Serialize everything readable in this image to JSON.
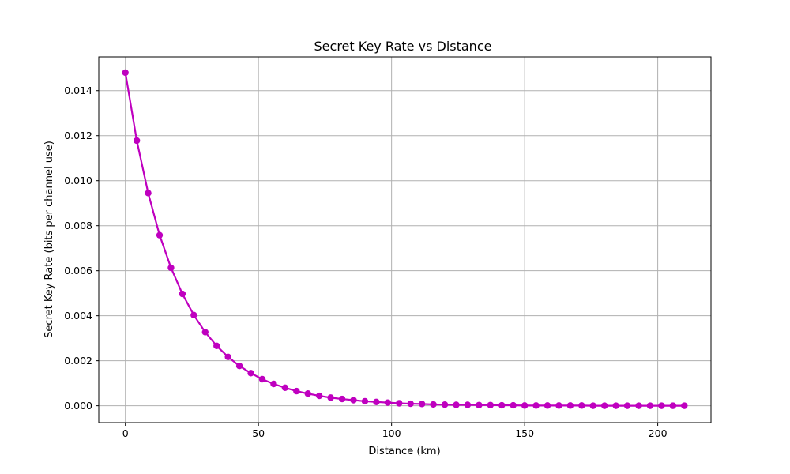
{
  "chart_data": {
    "type": "line",
    "title": "Secret Key Rate vs Distance",
    "xlabel": "Distance (km)",
    "ylabel": "Secret Key Rate (bits per channel use)",
    "xlim": [
      -10,
      220
    ],
    "ylim": [
      -0.00075,
      0.0155
    ],
    "xticks": [
      0,
      50,
      100,
      150,
      200
    ],
    "yticks": [
      0.0,
      0.002,
      0.004,
      0.006,
      0.008,
      0.01,
      0.012,
      0.014
    ],
    "ytick_labels": [
      "0.000",
      "0.002",
      "0.004",
      "0.006",
      "0.008",
      "0.010",
      "0.012",
      "0.014"
    ],
    "grid": true,
    "color": "#bf00bf",
    "series": [
      {
        "marker": "circle",
        "x": [
          0,
          4.29,
          8.57,
          12.86,
          17.14,
          21.43,
          25.71,
          30.0,
          34.29,
          38.57,
          42.86,
          47.14,
          51.43,
          55.71,
          60.0,
          64.29,
          68.57,
          72.86,
          77.14,
          81.43,
          85.71,
          90.0,
          94.29,
          98.57,
          102.86,
          107.14,
          111.43,
          115.71,
          120.0,
          124.29,
          128.57,
          132.86,
          137.14,
          141.43,
          145.71,
          150.0,
          154.29,
          158.57,
          162.86,
          167.14,
          171.43,
          175.71,
          180.0,
          184.29,
          188.57,
          192.86,
          197.14,
          201.43,
          205.71,
          210.0
        ],
        "y": [
          0.0148,
          0.01178,
          0.00945,
          0.00758,
          0.00613,
          0.00497,
          0.00403,
          0.00327,
          0.00266,
          0.00217,
          0.00177,
          0.00145,
          0.00118,
          0.00097,
          0.0008,
          0.00065,
          0.00054,
          0.00044,
          0.00036,
          0.0003,
          0.00025,
          0.0002,
          0.00017,
          0.00014,
          0.00011,
          9e-05,
          8e-05,
          6e-05,
          5e-05,
          4e-05,
          4e-05,
          3e-05,
          3e-05,
          2e-05,
          2e-05,
          1e-05,
          1e-05,
          1e-05,
          1e-05,
          1e-05,
          1e-05,
          0.0,
          0.0,
          0.0,
          0.0,
          0.0,
          0.0,
          0.0,
          0.0,
          0.0
        ]
      }
    ]
  }
}
